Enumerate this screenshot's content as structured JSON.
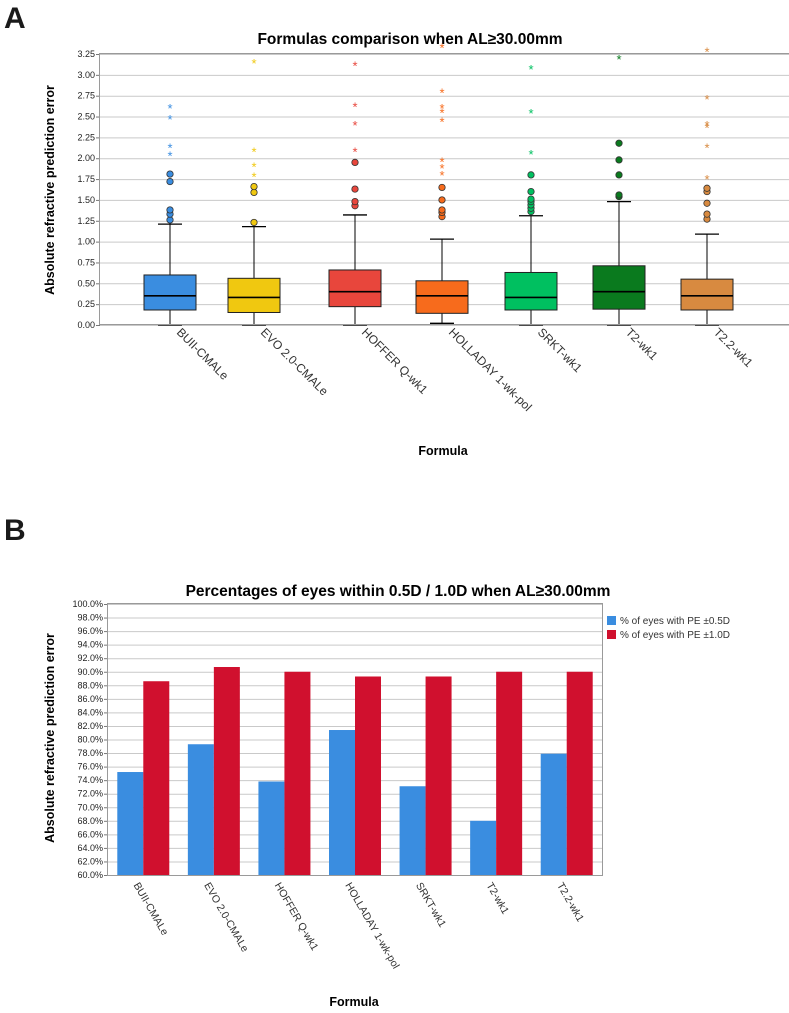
{
  "panels": {
    "a": {
      "letter": "A",
      "chart_data": {
        "type": "boxplot",
        "title": "Formulas comparison when AL≥30.00mm",
        "xlabel": "Formula",
        "ylabel": "Absolute refractive prediction error",
        "ylim": [
          0,
          3.25
        ],
        "yticks": [
          0,
          0.25,
          0.5,
          0.75,
          1.0,
          1.25,
          1.5,
          1.75,
          2.0,
          2.25,
          2.5,
          2.75,
          3.0,
          3.25
        ],
        "ytick_labels": [
          "0.00",
          "0.25",
          "0.50",
          "0.75",
          "1.00",
          "1.25",
          "1.50",
          "1.75",
          "2.00",
          "2.25",
          "2.50",
          "2.75",
          "3.00",
          "3.25"
        ],
        "categories": [
          "BUII-CMALe",
          "EVO 2.0-CMALe",
          "HOFFER Q-wk1",
          "HOLLADAY 1-wk-pol",
          "SRKT-wk1",
          "T2-wk1",
          "T2.2-wk1"
        ],
        "boxes": [
          {
            "color": "#3a8de0",
            "whisker_low": 0.0,
            "q1": 0.18,
            "median": 0.35,
            "q3": 0.6,
            "whisker_high": 1.21,
            "outliers": [
              1.26,
              1.33,
              1.38,
              1.72,
              1.81
            ],
            "extremes": [
              2.03,
              2.13,
              2.47,
              2.6
            ]
          },
          {
            "color": "#f0c810",
            "whisker_low": 0.0,
            "q1": 0.15,
            "median": 0.33,
            "q3": 0.56,
            "whisker_high": 1.18,
            "outliers": [
              1.23,
              1.59,
              1.66
            ],
            "extremes": [
              1.78,
              1.9,
              2.08,
              3.14
            ]
          },
          {
            "color": "#e8463c",
            "whisker_low": 0.0,
            "q1": 0.22,
            "median": 0.4,
            "q3": 0.66,
            "whisker_high": 1.32,
            "outliers": [
              1.43,
              1.48,
              1.63,
              1.95
            ],
            "extremes": [
              2.08,
              2.4,
              2.62,
              3.11
            ]
          },
          {
            "color": "#f76b1c",
            "whisker_low": 0.02,
            "q1": 0.14,
            "median": 0.35,
            "q3": 0.53,
            "whisker_high": 1.03,
            "outliers": [
              1.3,
              1.35,
              1.38,
              1.5,
              1.65
            ],
            "extremes": [
              1.8,
              1.88,
              1.96,
              2.44,
              2.55,
              2.6,
              2.79,
              3.33
            ]
          },
          {
            "color": "#00c060",
            "whisker_low": 0.0,
            "q1": 0.18,
            "median": 0.33,
            "q3": 0.63,
            "whisker_high": 1.31,
            "outliers": [
              1.36,
              1.4,
              1.44,
              1.48,
              1.51,
              1.6,
              1.8
            ],
            "extremes": [
              2.05,
              2.54,
              3.07
            ]
          },
          {
            "color": "#0a7a1e",
            "whisker_low": 0.0,
            "q1": 0.19,
            "median": 0.4,
            "q3": 0.71,
            "whisker_high": 1.48,
            "outliers": [
              1.54,
              1.56,
              1.8,
              1.98,
              2.18
            ],
            "extremes": [
              3.19
            ]
          },
          {
            "color": "#d88a40",
            "whisker_low": 0.0,
            "q1": 0.18,
            "median": 0.35,
            "q3": 0.55,
            "whisker_high": 1.09,
            "outliers": [
              1.27,
              1.33,
              1.46,
              1.6,
              1.64
            ],
            "extremes": [
              1.75,
              2.13,
              2.37,
              2.4,
              2.71,
              3.28
            ]
          }
        ]
      }
    },
    "b": {
      "letter": "B",
      "chart_data": {
        "type": "bar",
        "title": "Percentages of eyes within 0.5D / 1.0D when AL≥30.00mm",
        "xlabel": "Formula",
        "ylabel": "Absolute refractive prediction error",
        "ylim": [
          60,
          100
        ],
        "ytick_labels": [
          "60.0%",
          "62.0%",
          "64.0%",
          "66.0%",
          "68.0%",
          "70.0%",
          "72.0%",
          "74.0%",
          "76.0%",
          "78.0%",
          "80.0%",
          "82.0%",
          "84.0%",
          "86.0%",
          "88.0%",
          "90.0%",
          "92.0%",
          "94.0%",
          "96.0%",
          "98.0%",
          "100.0%"
        ],
        "categories": [
          "BUII-CMALe",
          "EVO 2.0-CMALe",
          "HOFFER Q-wk1",
          "HOLLADAY 1-wk-pol",
          "SRKT-wk1",
          "T2-wk1",
          "T2.2-wk1"
        ],
        "series": [
          {
            "name": "% of eyes with PE ±0.5D",
            "color": "#3a8de0",
            "values": [
              75.2,
              79.3,
              73.8,
              81.4,
              73.1,
              68.0,
              77.9
            ]
          },
          {
            "name": "% of eyes with PE ±1.0D",
            "color": "#d0102e",
            "values": [
              88.6,
              90.7,
              90.0,
              89.3,
              89.3,
              90.0,
              90.0
            ]
          }
        ],
        "legend_position": "top-right"
      }
    }
  }
}
